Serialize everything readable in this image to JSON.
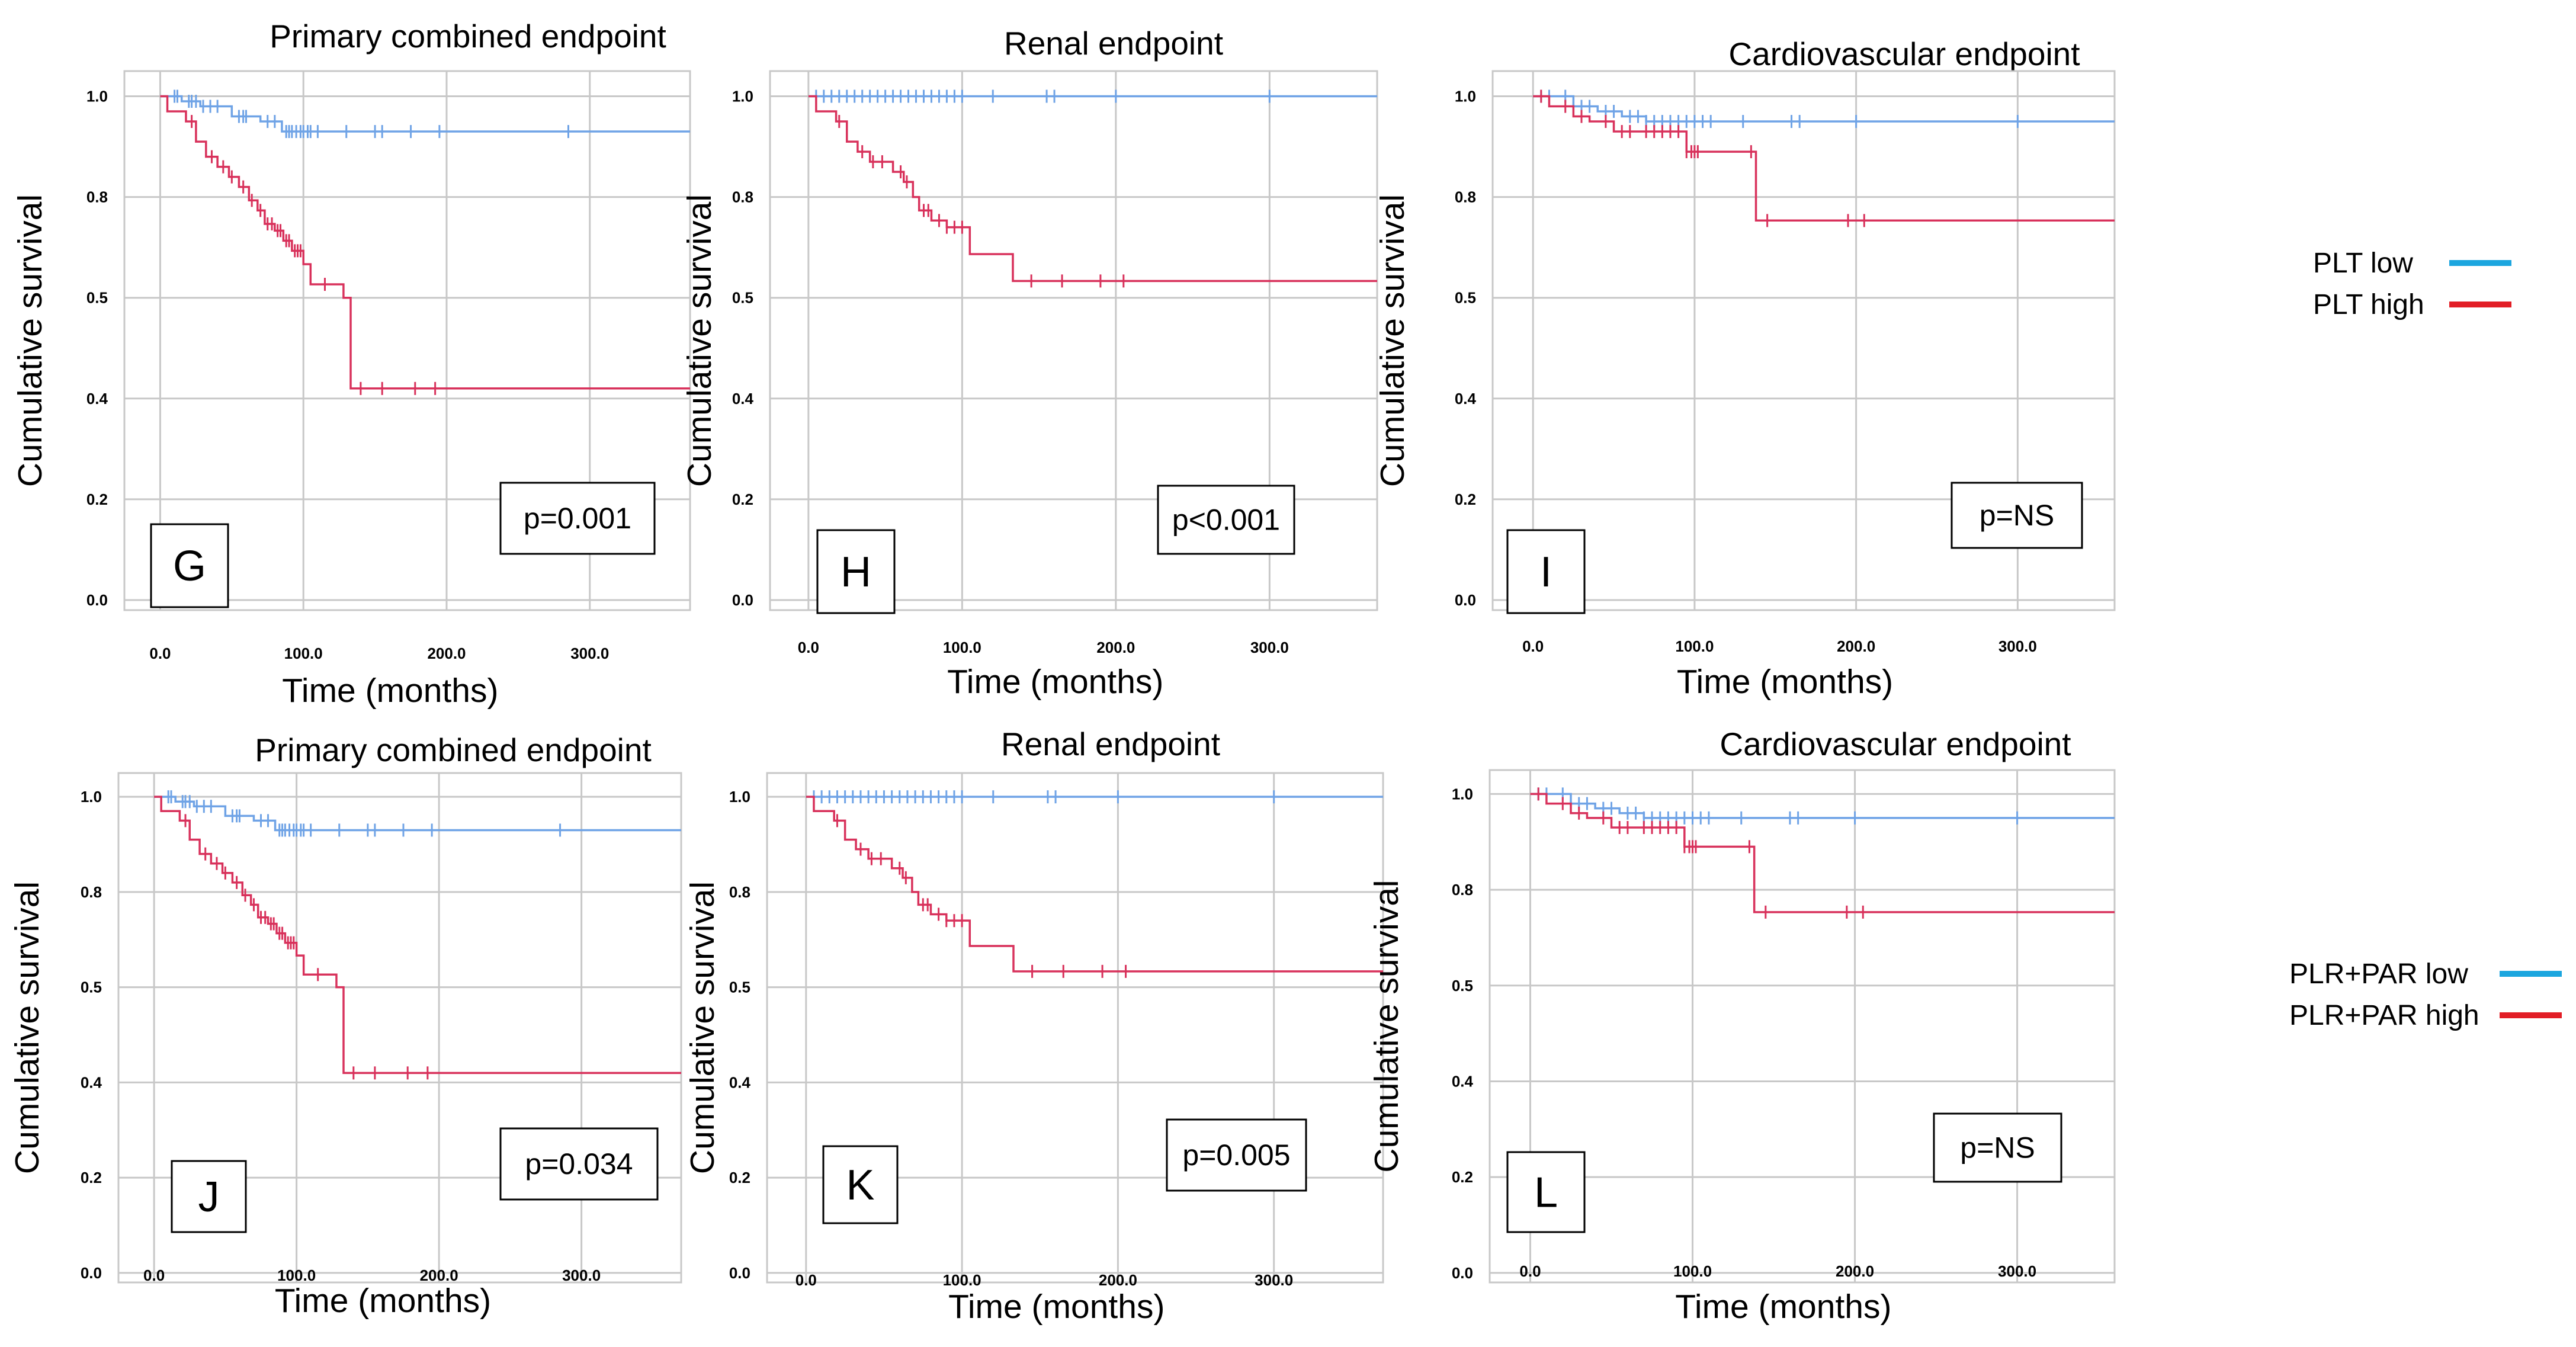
{
  "legends": [
    {
      "items": [
        {
          "label": "PLT low",
          "color": "#1ca6df"
        },
        {
          "label": "PLT high",
          "color": "#e21e26"
        }
      ]
    },
    {
      "items": [
        {
          "label": "PLR+PAR low",
          "color": "#1ca6df"
        },
        {
          "label": "PLR+PAR high",
          "color": "#e21e26"
        }
      ]
    }
  ],
  "chart_data": [
    {
      "type": "line",
      "subtype": "kaplan-meier",
      "panel_letter": "G",
      "title": "Primary combined endpoint",
      "xlabel": "Time (months)",
      "ylabel": "Cumulative survival",
      "x_ticks": [
        "0.0",
        "100.0",
        "200.0",
        "300.0"
      ],
      "y_ticks": [
        "0.0",
        "0.2",
        "0.4",
        "0.5",
        "0.8",
        "1.0"
      ],
      "xlim": [
        -25,
        370
      ],
      "ylim": [
        -0.02,
        1.05
      ],
      "p_value": "p=0.001",
      "series": [
        {
          "name": "low",
          "color": "#6fa3e6",
          "steps": [
            [
              0,
              1.0
            ],
            [
              15,
              0.99
            ],
            [
              28,
              0.98
            ],
            [
              50,
              0.96
            ],
            [
              70,
              0.95
            ],
            [
              85,
              0.93
            ],
            [
              370,
              0.93
            ]
          ],
          "censored": [
            10,
            12,
            20,
            22,
            25,
            30,
            35,
            40,
            55,
            58,
            60,
            75,
            80,
            88,
            90,
            92,
            95,
            98,
            100,
            103,
            105,
            110,
            130,
            150,
            155,
            175,
            195,
            285
          ]
        },
        {
          "name": "high",
          "color": "#d8315b",
          "steps": [
            [
              0,
              1.0
            ],
            [
              5,
              0.97
            ],
            [
              18,
              0.95
            ],
            [
              25,
              0.91
            ],
            [
              32,
              0.88
            ],
            [
              40,
              0.86
            ],
            [
              48,
              0.84
            ],
            [
              55,
              0.82
            ],
            [
              62,
              0.79
            ],
            [
              68,
              0.76
            ],
            [
              73,
              0.72
            ],
            [
              80,
              0.7
            ],
            [
              86,
              0.67
            ],
            [
              92,
              0.64
            ],
            [
              100,
              0.6
            ],
            [
              105,
              0.54
            ],
            [
              128,
              0.5
            ],
            [
              133,
              0.41
            ],
            [
              370,
              0.41
            ]
          ],
          "censored": [
            22,
            36,
            44,
            50,
            58,
            64,
            70,
            75,
            78,
            82,
            84,
            88,
            90,
            94,
            96,
            98,
            115,
            140,
            155,
            178,
            192
          ]
        }
      ]
    },
    {
      "type": "line",
      "subtype": "kaplan-meier",
      "panel_letter": "H",
      "title": "Renal endpoint",
      "xlabel": "Time (months)",
      "ylabel": "Cumulative survival",
      "x_ticks": [
        "0.0",
        "100.0",
        "200.0",
        "300.0"
      ],
      "y_ticks": [
        "0.0",
        "0.2",
        "0.4",
        "0.5",
        "0.8",
        "1.0"
      ],
      "xlim": [
        -25,
        370
      ],
      "ylim": [
        -0.02,
        1.05
      ],
      "p_value": "p<0.001",
      "series": [
        {
          "name": "low",
          "color": "#6fa3e6",
          "steps": [
            [
              0,
              1.0
            ],
            [
              370,
              1.0
            ]
          ],
          "censored": [
            5,
            10,
            15,
            20,
            25,
            30,
            35,
            40,
            45,
            50,
            55,
            60,
            65,
            70,
            75,
            80,
            85,
            90,
            95,
            100,
            120,
            155,
            160,
            200,
            300
          ]
        },
        {
          "name": "high",
          "color": "#d8315b",
          "steps": [
            [
              0,
              1.0
            ],
            [
              5,
              0.97
            ],
            [
              18,
              0.95
            ],
            [
              25,
              0.91
            ],
            [
              32,
              0.89
            ],
            [
              40,
              0.87
            ],
            [
              55,
              0.85
            ],
            [
              62,
              0.83
            ],
            [
              68,
              0.8
            ],
            [
              72,
              0.76
            ],
            [
              80,
              0.73
            ],
            [
              90,
              0.71
            ],
            [
              100,
              0.71
            ],
            [
              105,
              0.63
            ],
            [
              130,
              0.63
            ],
            [
              133,
              0.55
            ],
            [
              370,
              0.55
            ]
          ],
          "censored": [
            20,
            35,
            42,
            48,
            60,
            64,
            75,
            78,
            85,
            90,
            95,
            100,
            145,
            165,
            190,
            205
          ]
        }
      ]
    },
    {
      "type": "line",
      "subtype": "kaplan-meier",
      "panel_letter": "I",
      "title": "Cardiovascular endpoint",
      "xlabel": "Time (months)",
      "ylabel": "Cumulative survival",
      "x_ticks": [
        "0.0",
        "100.0",
        "200.0",
        "300.0"
      ],
      "y_ticks": [
        "0.0",
        "0.2",
        "0.4",
        "0.5",
        "0.8",
        "1.0"
      ],
      "xlim": [
        -25,
        360
      ],
      "ylim": [
        -0.02,
        1.05
      ],
      "p_value": "p=NS",
      "series": [
        {
          "name": "low",
          "color": "#6fa3e6",
          "steps": [
            [
              0,
              1.0
            ],
            [
              25,
              0.98
            ],
            [
              40,
              0.97
            ],
            [
              55,
              0.96
            ],
            [
              70,
              0.95
            ],
            [
              360,
              0.95
            ]
          ],
          "censored": [
            5,
            10,
            20,
            25,
            30,
            35,
            45,
            50,
            60,
            65,
            70,
            75,
            80,
            85,
            90,
            95,
            100,
            105,
            110,
            130,
            160,
            165,
            200,
            300
          ]
        },
        {
          "name": "high",
          "color": "#d8315b",
          "steps": [
            [
              0,
              1.0
            ],
            [
              10,
              0.98
            ],
            [
              25,
              0.96
            ],
            [
              35,
              0.95
            ],
            [
              50,
              0.93
            ],
            [
              95,
              0.89
            ],
            [
              105,
              0.89
            ],
            [
              135,
              0.89
            ],
            [
              138,
              0.73
            ],
            [
              360,
              0.73
            ]
          ],
          "censored": [
            5,
            20,
            30,
            45,
            55,
            60,
            70,
            75,
            80,
            85,
            90,
            95,
            98,
            100,
            102,
            135,
            145,
            195,
            205
          ]
        }
      ]
    },
    {
      "type": "line",
      "subtype": "kaplan-meier",
      "panel_letter": "J",
      "title": "Primary combined endpoint",
      "xlabel": "Time (months)",
      "ylabel": "Cumulative survival",
      "x_ticks": [
        "0.0",
        "100.0",
        "200.0",
        "300.0"
      ],
      "y_ticks": [
        "0.0",
        "0.2",
        "0.4",
        "0.5",
        "0.8",
        "1.0"
      ],
      "xlim": [
        -25,
        370
      ],
      "ylim": [
        -0.02,
        1.05
      ],
      "p_value": "p=0.034",
      "series": [
        {
          "name": "low",
          "color": "#6fa3e6",
          "steps": [
            [
              0,
              1.0
            ],
            [
              15,
              0.99
            ],
            [
              28,
              0.98
            ],
            [
              50,
              0.96
            ],
            [
              70,
              0.95
            ],
            [
              85,
              0.93
            ],
            [
              370,
              0.93
            ]
          ],
          "censored": [
            10,
            12,
            20,
            22,
            25,
            30,
            35,
            40,
            55,
            58,
            60,
            75,
            80,
            88,
            90,
            92,
            95,
            98,
            100,
            103,
            105,
            110,
            130,
            150,
            155,
            175,
            195,
            285
          ]
        },
        {
          "name": "high",
          "color": "#d8315b",
          "steps": [
            [
              0,
              1.0
            ],
            [
              5,
              0.97
            ],
            [
              18,
              0.95
            ],
            [
              25,
              0.91
            ],
            [
              32,
              0.88
            ],
            [
              40,
              0.86
            ],
            [
              48,
              0.84
            ],
            [
              55,
              0.82
            ],
            [
              62,
              0.79
            ],
            [
              68,
              0.76
            ],
            [
              73,
              0.72
            ],
            [
              80,
              0.7
            ],
            [
              86,
              0.67
            ],
            [
              92,
              0.64
            ],
            [
              100,
              0.6
            ],
            [
              105,
              0.54
            ],
            [
              128,
              0.5
            ],
            [
              133,
              0.41
            ],
            [
              370,
              0.41
            ]
          ],
          "censored": [
            22,
            36,
            44,
            50,
            58,
            64,
            70,
            75,
            78,
            82,
            84,
            88,
            90,
            94,
            96,
            98,
            115,
            140,
            155,
            178,
            192
          ]
        }
      ]
    },
    {
      "type": "line",
      "subtype": "kaplan-meier",
      "panel_letter": "K",
      "title": "Renal endpoint",
      "xlabel": "Time (months)",
      "ylabel": "Cumulative survival",
      "x_ticks": [
        "0.0",
        "100.0",
        "200.0",
        "300.0"
      ],
      "y_ticks": [
        "0.0",
        "0.2",
        "0.4",
        "0.5",
        "0.8",
        "1.0"
      ],
      "xlim": [
        -25,
        370
      ],
      "ylim": [
        -0.02,
        1.05
      ],
      "p_value": "p=0.005",
      "series": [
        {
          "name": "low",
          "color": "#6fa3e6",
          "steps": [
            [
              0,
              1.0
            ],
            [
              370,
              1.0
            ]
          ],
          "censored": [
            5,
            10,
            15,
            20,
            25,
            30,
            35,
            40,
            45,
            50,
            55,
            60,
            65,
            70,
            75,
            80,
            85,
            90,
            95,
            100,
            120,
            155,
            160,
            200,
            300
          ]
        },
        {
          "name": "high",
          "color": "#d8315b",
          "steps": [
            [
              0,
              1.0
            ],
            [
              5,
              0.97
            ],
            [
              18,
              0.95
            ],
            [
              25,
              0.91
            ],
            [
              32,
              0.89
            ],
            [
              40,
              0.87
            ],
            [
              55,
              0.85
            ],
            [
              62,
              0.83
            ],
            [
              68,
              0.8
            ],
            [
              72,
              0.76
            ],
            [
              80,
              0.73
            ],
            [
              90,
              0.71
            ],
            [
              100,
              0.71
            ],
            [
              105,
              0.63
            ],
            [
              130,
              0.63
            ],
            [
              133,
              0.55
            ],
            [
              370,
              0.55
            ]
          ],
          "censored": [
            20,
            35,
            42,
            48,
            60,
            64,
            75,
            78,
            85,
            90,
            95,
            100,
            145,
            165,
            190,
            205
          ]
        }
      ]
    },
    {
      "type": "line",
      "subtype": "kaplan-meier",
      "panel_letter": "L",
      "title": "Cardiovascular endpoint",
      "xlabel": "Time (months)",
      "ylabel": "Cumulative survival",
      "x_ticks": [
        "0.0",
        "100.0",
        "200.0",
        "300.0"
      ],
      "y_ticks": [
        "0.0",
        "0.2",
        "0.4",
        "0.5",
        "0.8",
        "1.0"
      ],
      "xlim": [
        -25,
        360
      ],
      "ylim": [
        -0.02,
        1.05
      ],
      "p_value": "p=NS",
      "series": [
        {
          "name": "low",
          "color": "#6fa3e6",
          "steps": [
            [
              0,
              1.0
            ],
            [
              25,
              0.98
            ],
            [
              40,
              0.97
            ],
            [
              55,
              0.96
            ],
            [
              70,
              0.95
            ],
            [
              360,
              0.95
            ]
          ],
          "censored": [
            5,
            10,
            20,
            25,
            30,
            35,
            45,
            50,
            60,
            65,
            70,
            75,
            80,
            85,
            90,
            95,
            100,
            105,
            110,
            130,
            160,
            165,
            200,
            300
          ]
        },
        {
          "name": "high",
          "color": "#d8315b",
          "steps": [
            [
              0,
              1.0
            ],
            [
              10,
              0.98
            ],
            [
              25,
              0.96
            ],
            [
              35,
              0.95
            ],
            [
              50,
              0.93
            ],
            [
              95,
              0.89
            ],
            [
              105,
              0.89
            ],
            [
              135,
              0.89
            ],
            [
              138,
              0.73
            ],
            [
              360,
              0.73
            ]
          ],
          "censored": [
            5,
            20,
            30,
            45,
            55,
            60,
            70,
            75,
            80,
            85,
            90,
            95,
            98,
            100,
            102,
            135,
            145,
            195,
            205
          ]
        }
      ]
    }
  ]
}
